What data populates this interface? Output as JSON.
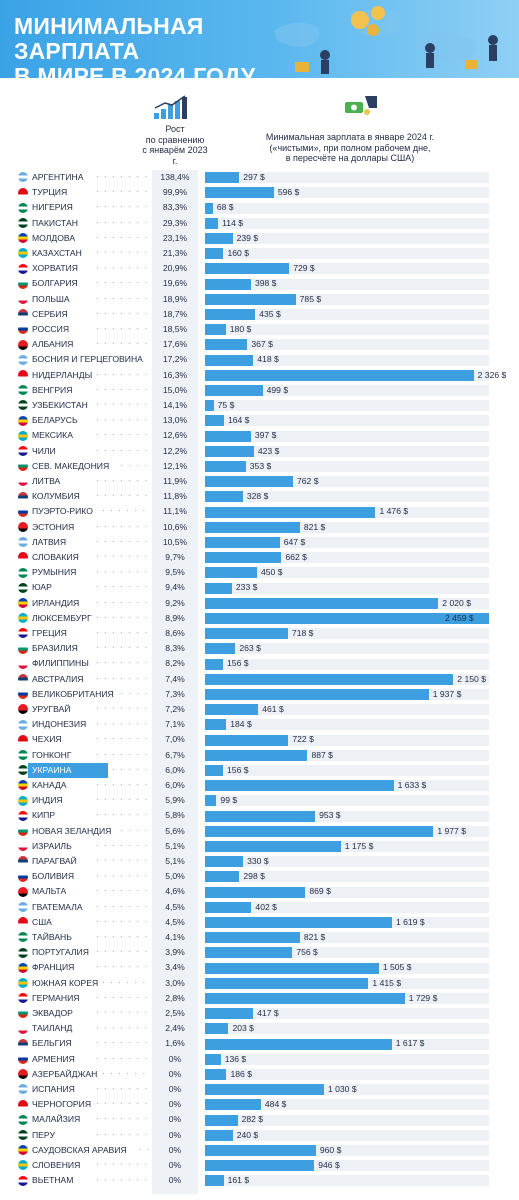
{
  "title": "МИНИМАЛЬНАЯ ЗАРПЛАТА\nВ МИРЕ В 2024 ГОДУ",
  "columns": {
    "growth_header": "Рост\nпо сравнению\nс январём 2023 г.",
    "wage_header": "Минимальная зарплата в январе 2024 г.\n(«чистыми», при полном рабочем дне,\nв пересчёте на доллары США)"
  },
  "colors": {
    "bar": "#3e9fe0",
    "track": "#edf0f5",
    "header": "#3aa3e6",
    "highlight": "#3e9fe0"
  },
  "highlight_country": "УКРАИНА",
  "chart_data": {
    "type": "bar",
    "orientation": "horizontal",
    "title": "МИНИМАЛЬНАЯ ЗАРПЛАТА В МИРЕ В 2024 ГОДУ",
    "xlabel": "Минимальная зарплата в январе 2024 г. («чистыми», при полном рабочем дне, в пересчёте на доллары США)",
    "ylabel": "",
    "xlim": [
      0,
      2459
    ],
    "grid": false,
    "legend": "none",
    "rows": [
      {
        "country": "АРГЕНТИНА",
        "growth": "138,4%",
        "wage": 297,
        "label": "297 $"
      },
      {
        "country": "ТУРЦИЯ",
        "growth": "99,9%",
        "wage": 596,
        "label": "596 $"
      },
      {
        "country": "НИГЕРИЯ",
        "growth": "83,3%",
        "wage": 68,
        "label": "68 $"
      },
      {
        "country": "ПАКИСТАН",
        "growth": "29,3%",
        "wage": 114,
        "label": "114 $"
      },
      {
        "country": "МОЛДОВА",
        "growth": "23,1%",
        "wage": 239,
        "label": "239 $"
      },
      {
        "country": "КАЗАХСТАН",
        "growth": "21,3%",
        "wage": 160,
        "label": "160 $"
      },
      {
        "country": "ХОРВАТИЯ",
        "growth": "20,9%",
        "wage": 729,
        "label": "729 $"
      },
      {
        "country": "БОЛГАРИЯ",
        "growth": "19,6%",
        "wage": 398,
        "label": "398 $"
      },
      {
        "country": "ПОЛЬША",
        "growth": "18,9%",
        "wage": 785,
        "label": "785 $"
      },
      {
        "country": "СЕРБИЯ",
        "growth": "18,7%",
        "wage": 435,
        "label": "435 $"
      },
      {
        "country": "РОССИЯ",
        "growth": "18,5%",
        "wage": 180,
        "label": "180 $"
      },
      {
        "country": "АЛБАНИЯ",
        "growth": "17,6%",
        "wage": 367,
        "label": "367 $"
      },
      {
        "country": "БОСНИЯ И ГЕРЦЕГОВИНА",
        "growth": "17,2%",
        "wage": 418,
        "label": "418 $"
      },
      {
        "country": "НИДЕРЛАНДЫ",
        "growth": "16,3%",
        "wage": 2326,
        "label": "2 326 $"
      },
      {
        "country": "ВЕНГРИЯ",
        "growth": "15,0%",
        "wage": 499,
        "label": "499 $"
      },
      {
        "country": "УЗБЕКИСТАН",
        "growth": "14,1%",
        "wage": 75,
        "label": "75 $"
      },
      {
        "country": "БЕЛАРУСЬ",
        "growth": "13,0%",
        "wage": 164,
        "label": "164 $"
      },
      {
        "country": "МЕКСИКА",
        "growth": "12,6%",
        "wage": 397,
        "label": "397 $"
      },
      {
        "country": "ЧИЛИ",
        "growth": "12,2%",
        "wage": 423,
        "label": "423 $"
      },
      {
        "country": "СЕВ. МАКЕДОНИЯ",
        "growth": "12,1%",
        "wage": 353,
        "label": "353 $"
      },
      {
        "country": "ЛИТВА",
        "growth": "11,9%",
        "wage": 762,
        "label": "762 $"
      },
      {
        "country": "КОЛУМБИЯ",
        "growth": "11,8%",
        "wage": 328,
        "label": "328 $"
      },
      {
        "country": "ПУЭРТО-РИКО",
        "growth": "11,1%",
        "wage": 1476,
        "label": "1 476 $"
      },
      {
        "country": "ЭСТОНИЯ",
        "growth": "10,6%",
        "wage": 821,
        "label": "821 $"
      },
      {
        "country": "ЛАТВИЯ",
        "growth": "10,5%",
        "wage": 647,
        "label": "647 $"
      },
      {
        "country": "СЛОВАКИЯ",
        "growth": "9,7%",
        "wage": 662,
        "label": "662 $"
      },
      {
        "country": "РУМЫНИЯ",
        "growth": "9,5%",
        "wage": 450,
        "label": "450 $"
      },
      {
        "country": "ЮАР",
        "growth": "9,4%",
        "wage": 233,
        "label": "233 $"
      },
      {
        "country": "ИРЛАНДИЯ",
        "growth": "9,2%",
        "wage": 2020,
        "label": "2 020 $"
      },
      {
        "country": "ЛЮКСЕМБУРГ",
        "growth": "8,9%",
        "wage": 2459,
        "label": "2 459 $"
      },
      {
        "country": "ГРЕЦИЯ",
        "growth": "8,6%",
        "wage": 718,
        "label": "718 $"
      },
      {
        "country": "БРАЗИЛИЯ",
        "growth": "8,3%",
        "wage": 263,
        "label": "263 $"
      },
      {
        "country": "ФИЛИППИНЫ",
        "growth": "8,2%",
        "wage": 156,
        "label": "156 $"
      },
      {
        "country": "АВСТРАЛИЯ",
        "growth": "7,4%",
        "wage": 2150,
        "label": "2 150 $"
      },
      {
        "country": "ВЕЛИКОБРИТАНИЯ",
        "growth": "7,3%",
        "wage": 1937,
        "label": "1 937 $"
      },
      {
        "country": "УРУГВАЙ",
        "growth": "7,2%",
        "wage": 461,
        "label": "461 $"
      },
      {
        "country": "ИНДОНЕЗИЯ",
        "growth": "7,1%",
        "wage": 184,
        "label": "184 $"
      },
      {
        "country": "ЧЕХИЯ",
        "growth": "7,0%",
        "wage": 722,
        "label": "722 $"
      },
      {
        "country": "ГОНКОНГ",
        "growth": "6,7%",
        "wage": 887,
        "label": "887 $"
      },
      {
        "country": "УКРАИНА",
        "growth": "6,0%",
        "wage": 156,
        "label": "156 $"
      },
      {
        "country": "КАНАДА",
        "growth": "6,0%",
        "wage": 1633,
        "label": "1 633 $"
      },
      {
        "country": "ИНДИЯ",
        "growth": "5,9%",
        "wage": 99,
        "label": "99 $"
      },
      {
        "country": "КИПР",
        "growth": "5,8%",
        "wage": 953,
        "label": "953 $"
      },
      {
        "country": "НОВАЯ ЗЕЛАНДИЯ",
        "growth": "5,6%",
        "wage": 1977,
        "label": "1 977 $"
      },
      {
        "country": "ИЗРАИЛЬ",
        "growth": "5,1%",
        "wage": 1175,
        "label": "1 175 $"
      },
      {
        "country": "ПАРАГВАЙ",
        "growth": "5,1%",
        "wage": 330,
        "label": "330 $"
      },
      {
        "country": "БОЛИВИЯ",
        "growth": "5,0%",
        "wage": 298,
        "label": "298 $"
      },
      {
        "country": "МАЛЬТА",
        "growth": "4,6%",
        "wage": 869,
        "label": "869 $"
      },
      {
        "country": "ГВАТЕМАЛА",
        "growth": "4,5%",
        "wage": 402,
        "label": "402 $"
      },
      {
        "country": "США",
        "growth": "4,5%",
        "wage": 1619,
        "label": "1 619 $"
      },
      {
        "country": "ТАЙВАНЬ",
        "growth": "4,1%",
        "wage": 821,
        "label": "821 $"
      },
      {
        "country": "ПОРТУГАЛИЯ",
        "growth": "3,9%",
        "wage": 756,
        "label": "756 $"
      },
      {
        "country": "ФРАНЦИЯ",
        "growth": "3,4%",
        "wage": 1505,
        "label": "1 505 $"
      },
      {
        "country": "ЮЖНАЯ КОРЕЯ",
        "growth": "3,0%",
        "wage": 1415,
        "label": "1 415 $"
      },
      {
        "country": "ГЕРМАНИЯ",
        "growth": "2,8%",
        "wage": 1729,
        "label": "1 729 $"
      },
      {
        "country": "ЭКВАДОР",
        "growth": "2,5%",
        "wage": 417,
        "label": "417 $"
      },
      {
        "country": "ТАИЛАНД",
        "growth": "2,4%",
        "wage": 203,
        "label": "203 $"
      },
      {
        "country": "БЕЛЬГИЯ",
        "growth": "1,6%",
        "wage": 1617,
        "label": "1 617 $"
      },
      {
        "country": "АРМЕНИЯ",
        "growth": "0%",
        "wage": 136,
        "label": "136 $"
      },
      {
        "country": "АЗЕРБАЙДЖАН",
        "growth": "0%",
        "wage": 186,
        "label": "186 $"
      },
      {
        "country": "ИСПАНИЯ",
        "growth": "0%",
        "wage": 1030,
        "label": "1 030 $"
      },
      {
        "country": "ЧЕРНОГОРИЯ",
        "growth": "0%",
        "wage": 484,
        "label": "484 $"
      },
      {
        "country": "МАЛАЙЗИЯ",
        "growth": "0%",
        "wage": 282,
        "label": "282 $"
      },
      {
        "country": "ПЕРУ",
        "growth": "0%",
        "wage": 240,
        "label": "240 $"
      },
      {
        "country": "САУДОВСКАЯ АРАВИЯ",
        "growth": "0%",
        "wage": 960,
        "label": "960 $"
      },
      {
        "country": "СЛОВЕНИЯ",
        "growth": "0%",
        "wage": 946,
        "label": "946 $"
      },
      {
        "country": "ВЬЕТНАМ",
        "growth": "0%",
        "wage": 161,
        "label": "161 $"
      }
    ]
  }
}
